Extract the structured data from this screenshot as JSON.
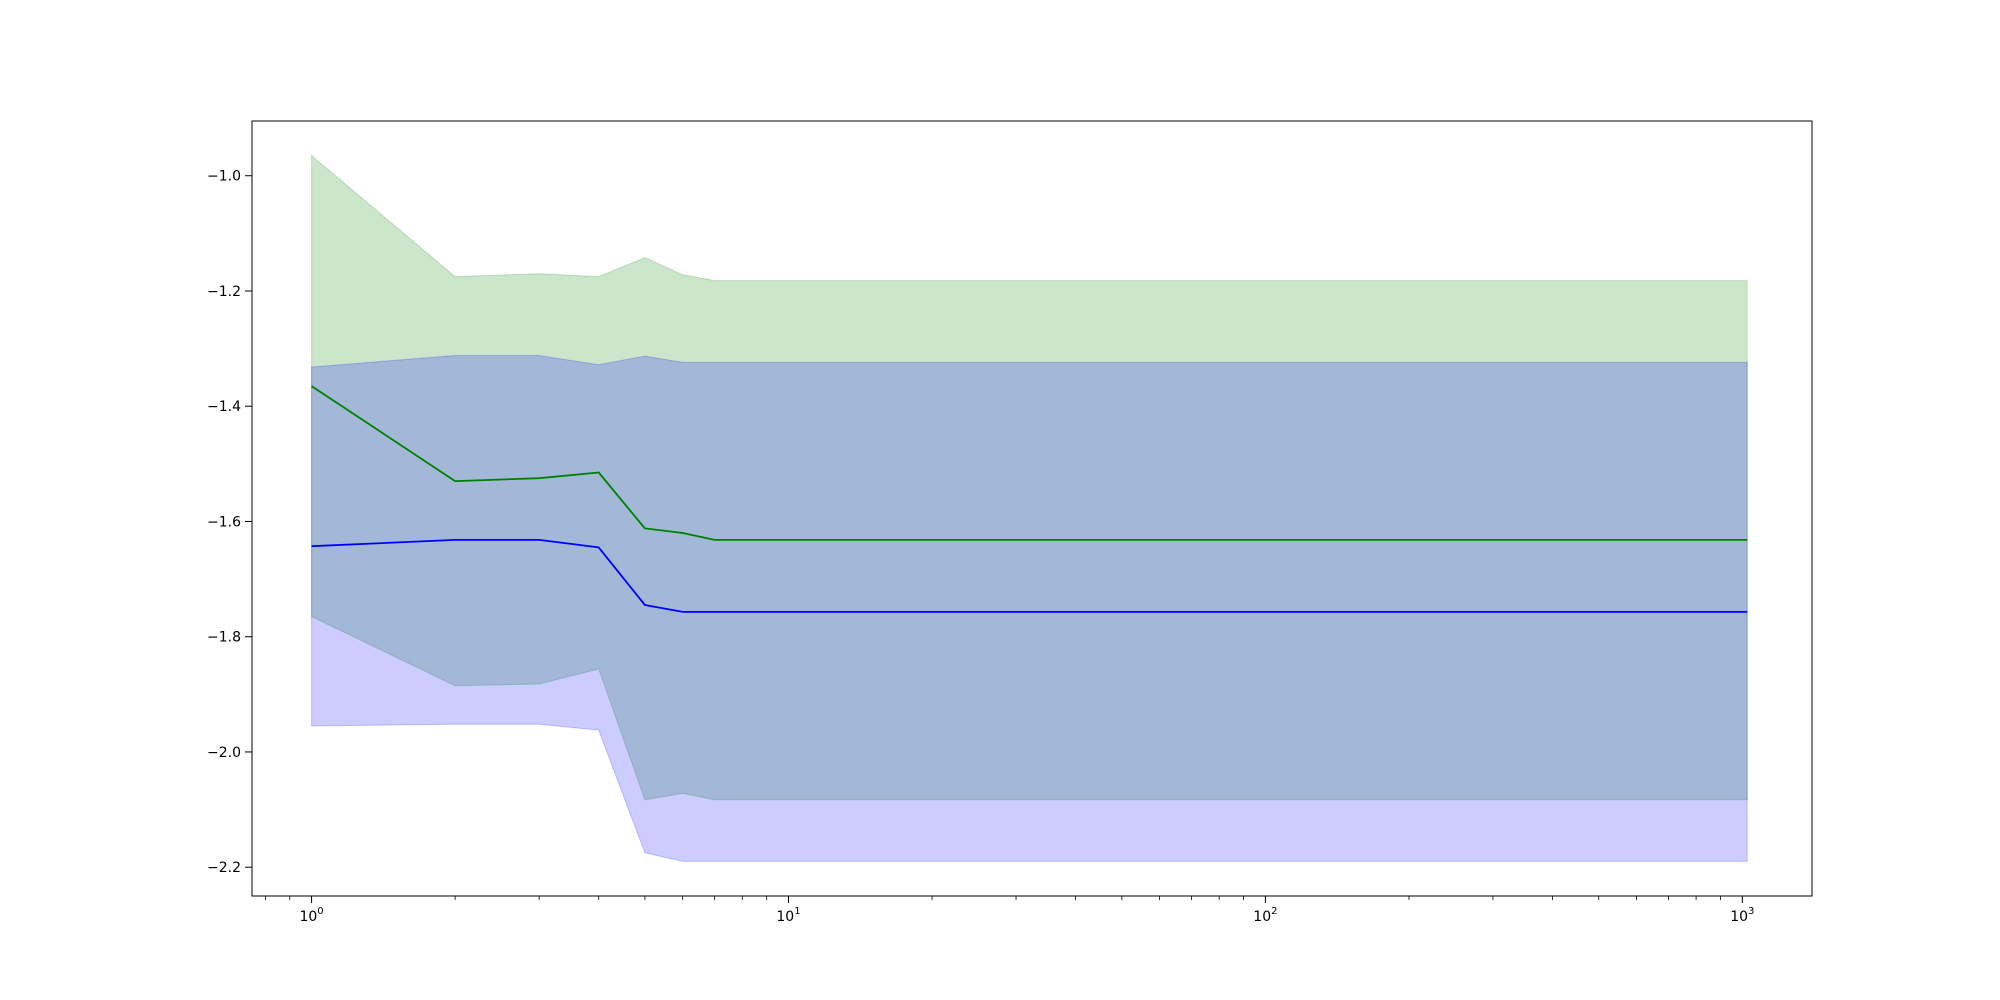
{
  "chart_data": {
    "type": "line",
    "title": "",
    "xlabel": "",
    "ylabel": "",
    "xscale": "log",
    "xlim": [
      0.75,
      1400
    ],
    "ylim": [
      -2.25,
      -0.905
    ],
    "grid": false,
    "x": [
      1,
      2,
      3,
      4,
      5,
      6,
      7,
      1024
    ],
    "series": [
      {
        "color": "#008000",
        "band_color": "#008000",
        "values": [
          -1.365,
          -1.53,
          -1.525,
          -1.515,
          -1.612,
          -1.62,
          -1.632,
          -1.632
        ],
        "upper": [
          -0.965,
          -1.175,
          -1.17,
          -1.175,
          -1.142,
          -1.172,
          -1.182,
          -1.182
        ],
        "lower": [
          -1.765,
          -1.885,
          -1.882,
          -1.856,
          -2.083,
          -2.072,
          -2.083,
          -2.083
        ]
      },
      {
        "color": "#0000ff",
        "band_color": "#0000ff",
        "values": [
          -1.643,
          -1.632,
          -1.632,
          -1.645,
          -1.745,
          -1.757,
          -1.757,
          -1.757
        ],
        "upper": [
          -1.332,
          -1.312,
          -1.312,
          -1.328,
          -1.313,
          -1.324,
          -1.324,
          -1.324
        ],
        "lower": [
          -1.955,
          -1.952,
          -1.952,
          -1.962,
          -2.175,
          -2.19,
          -2.19,
          -2.19
        ]
      }
    ],
    "xticks": [
      {
        "value": 1,
        "base": "10",
        "exp": "0"
      },
      {
        "value": 10,
        "base": "10",
        "exp": "1"
      },
      {
        "value": 100,
        "base": "10",
        "exp": "2"
      },
      {
        "value": 1000,
        "base": "10",
        "exp": "3"
      }
    ],
    "yticks": [
      {
        "value": -1.0,
        "label": "−1.0"
      },
      {
        "value": -1.2,
        "label": "−1.2"
      },
      {
        "value": -1.4,
        "label": "−1.4"
      },
      {
        "value": -1.6,
        "label": "−1.6"
      },
      {
        "value": -1.8,
        "label": "−1.8"
      },
      {
        "value": -2.0,
        "label": "−2.0"
      },
      {
        "value": -2.2,
        "label": "−2.2"
      }
    ]
  }
}
